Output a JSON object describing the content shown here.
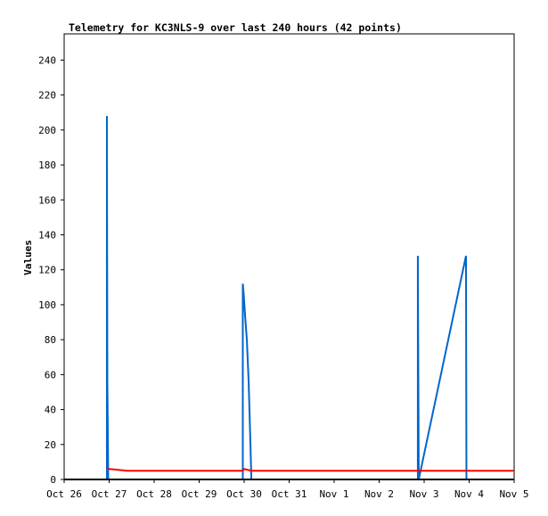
{
  "chart_data": {
    "type": "line",
    "title": "Telemetry for KC3NLS-9 over last 240 hours (42 points)",
    "ylabel": "Values",
    "xlim": [
      0,
      10
    ],
    "xticks": [
      {
        "value": 0,
        "label": "Oct 26"
      },
      {
        "value": 1,
        "label": "Oct 27"
      },
      {
        "value": 2,
        "label": "Oct 28"
      },
      {
        "value": 3,
        "label": "Oct 29"
      },
      {
        "value": 4,
        "label": "Oct 30"
      },
      {
        "value": 5,
        "label": "Oct 31"
      },
      {
        "value": 6,
        "label": "Nov 1"
      },
      {
        "value": 7,
        "label": "Nov 2"
      },
      {
        "value": 8,
        "label": "Nov 3"
      },
      {
        "value": 9,
        "label": "Nov 4"
      },
      {
        "value": 10,
        "label": "Nov 5"
      }
    ],
    "ylim": [
      0,
      255
    ],
    "yticks": [
      0,
      20,
      40,
      60,
      80,
      100,
      120,
      140,
      160,
      180,
      200,
      220,
      240
    ],
    "grid": false,
    "series": [
      {
        "color": "#0066cc",
        "x": [
          0.95,
          0.95,
          0.96,
          0.98,
          3.97,
          3.97,
          3.99,
          4.02,
          4.06,
          4.1,
          4.14,
          4.16,
          7.86,
          7.86,
          7.88,
          8.93,
          8.94
        ],
        "values": [
          0,
          208,
          56,
          0,
          0,
          112,
          106,
          94,
          80,
          56,
          20,
          0,
          0,
          128,
          0,
          128,
          0
        ]
      },
      {
        "color": "#ff0000",
        "x": [
          0.95,
          1.0,
          1.4,
          3.97,
          4.0,
          4.16,
          10
        ],
        "values": [
          6,
          6,
          5,
          5,
          6,
          5,
          5
        ]
      }
    ]
  }
}
